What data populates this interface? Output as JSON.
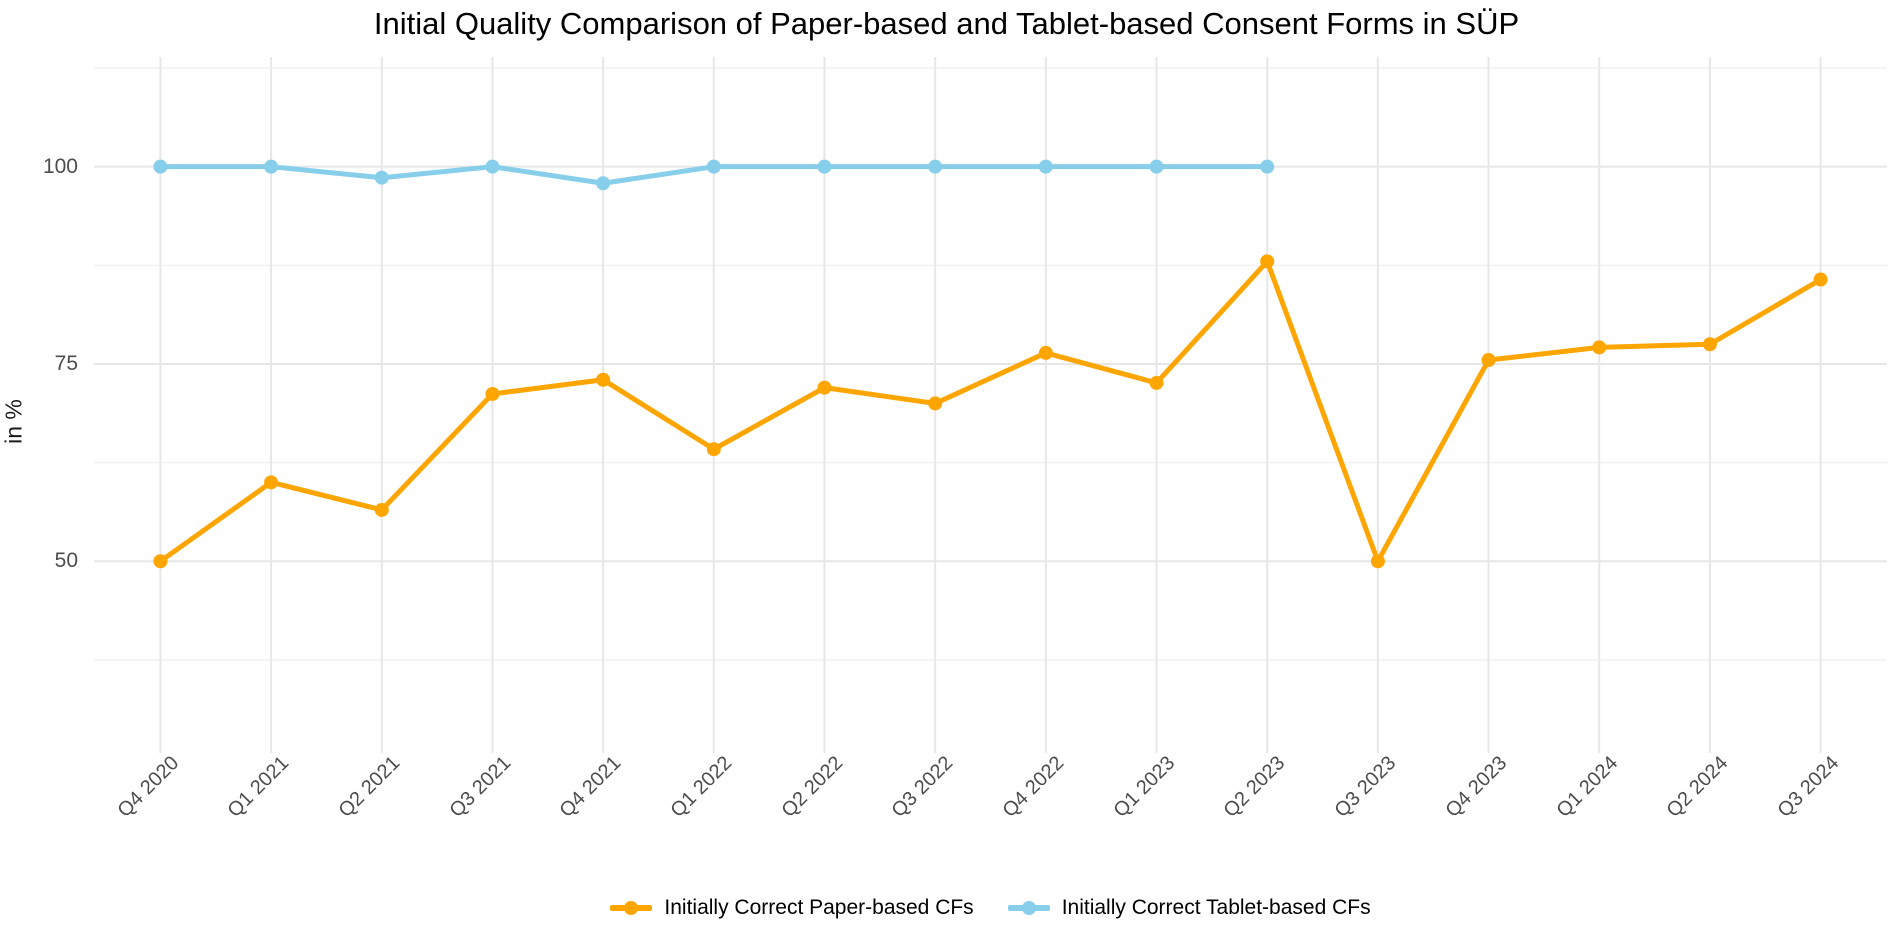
{
  "title": "Initial Quality Comparison of Paper-based and Tablet-based Consent Forms in SÜP",
  "chart_data": {
    "type": "line",
    "title": "Initial Quality Comparison of Paper-based and Tablet-based Consent Forms in SÜP",
    "xlabel": "",
    "ylabel": "in %",
    "categories": [
      "Q4 2020",
      "Q1 2021",
      "Q2 2021",
      "Q3 2021",
      "Q4 2021",
      "Q1 2022",
      "Q2 2022",
      "Q3 2022",
      "Q4 2022",
      "Q1 2023",
      "Q2 2023",
      "Q3 2023",
      "Q4 2023",
      "Q1 2024",
      "Q2 2024",
      "Q3 2024"
    ],
    "series": [
      {
        "name": "Initially Correct Paper-based CFs",
        "color": "#FFA500",
        "values": [
          50,
          60,
          56.5,
          71.2,
          73,
          64.2,
          72,
          70,
          76.4,
          72.6,
          88,
          50,
          75.5,
          77.1,
          77.5,
          85.7
        ]
      },
      {
        "name": "Initially Correct Tablet-based CFs",
        "color": "#87CEEB",
        "values": [
          100,
          100,
          98.6,
          100,
          97.9,
          100,
          100,
          100,
          100,
          100,
          100,
          null,
          null,
          null,
          null,
          null
        ]
      }
    ],
    "y_ticks": [
      50,
      75,
      100
    ],
    "y_minor_gridlines": [
      37.5,
      62.5,
      87.5,
      112.5
    ],
    "ylim": [
      25.7,
      113.9
    ],
    "grid": true,
    "legend_position": "bottom",
    "colors": {
      "major_grid": "#e7e7e7",
      "minor_grid": "#f1f1f1",
      "tick_text": "#4d4d4d",
      "background": "#ffffff"
    }
  }
}
